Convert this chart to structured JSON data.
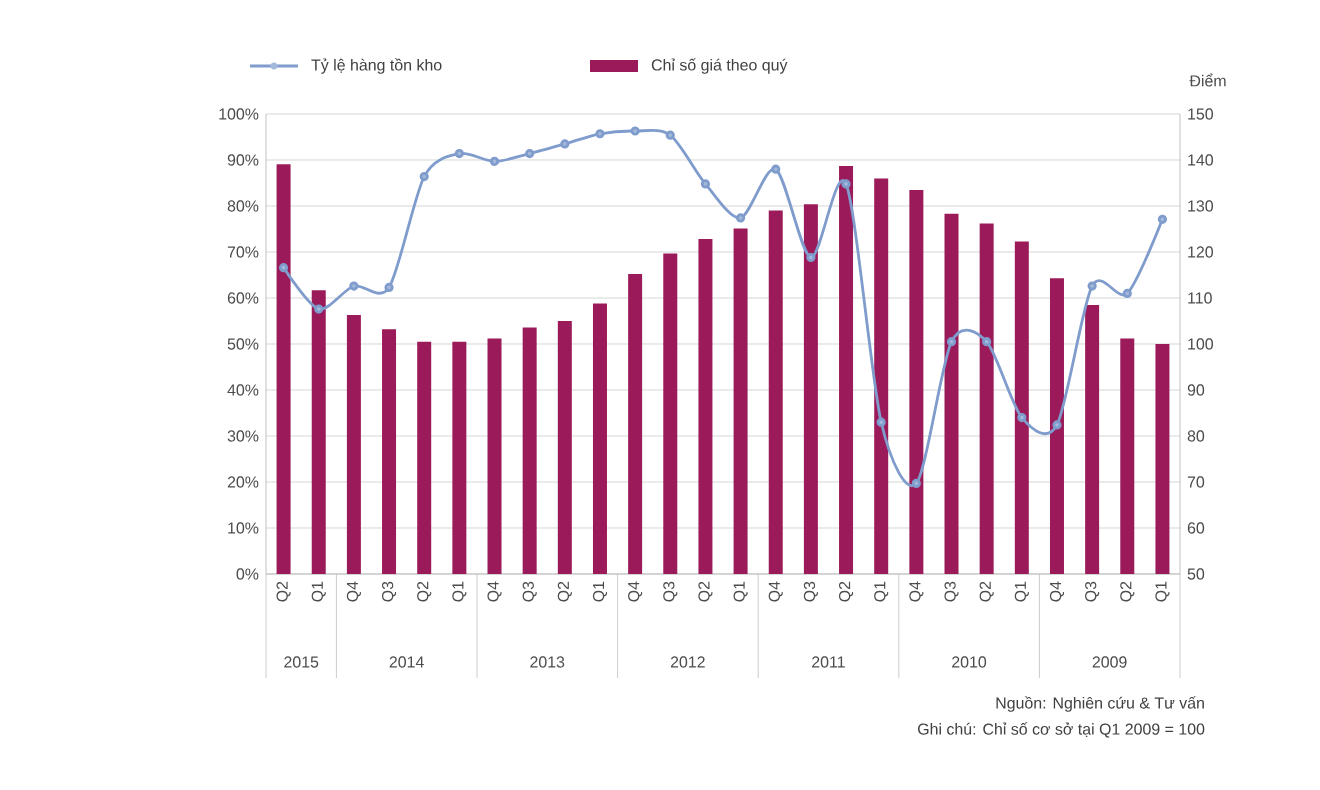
{
  "chart_data": {
    "type": "bar",
    "categories": [
      "Q2",
      "Q1",
      "Q4",
      "Q3",
      "Q2",
      "Q1",
      "Q4",
      "Q3",
      "Q2",
      "Q1",
      "Q4",
      "Q3",
      "Q2",
      "Q1",
      "Q4",
      "Q3",
      "Q2",
      "Q1",
      "Q4",
      "Q3",
      "Q2",
      "Q1",
      "Q4",
      "Q3",
      "Q2",
      "Q1"
    ],
    "series": [
      {
        "name": "Tỷ lệ hàng tồn kho",
        "type": "line",
        "color": "#7f9ccc",
        "values": [
          66.6,
          57.6,
          62.6,
          62.3,
          86.4,
          91.4,
          89.7,
          91.4,
          93.5,
          95.7,
          96.3,
          95.4,
          84.8,
          77.4,
          88,
          68.8,
          84.8,
          33,
          19.7,
          50.5,
          50.5,
          34,
          32.4,
          62.6,
          61,
          77.1
        ]
      },
      {
        "name": "Chỉ số giá theo quý",
        "axis": "y2",
        "color": "#9b1b5a",
        "values": [
          139.1,
          111.7,
          106.3,
          103.2,
          100.5,
          100.5,
          101.2,
          103.6,
          105,
          108.8,
          115.2,
          119.7,
          122.8,
          125.1,
          129,
          130.4,
          138.7,
          136,
          133.5,
          128.3,
          126.2,
          122.3,
          114.3,
          108.5,
          101.2,
          100
        ]
      }
    ],
    "ylim": [
      0,
      100
    ],
    "yticks": [
      {
        "value": 0,
        "label": "0%"
      },
      {
        "value": 10,
        "label": "10%"
      },
      {
        "value": 20,
        "label": "20%"
      },
      {
        "value": 30,
        "label": "30%"
      },
      {
        "value": 40,
        "label": "40%"
      },
      {
        "value": 50,
        "label": "50%"
      },
      {
        "value": 60,
        "label": "60%"
      },
      {
        "value": 70,
        "label": "70%"
      },
      {
        "value": 80,
        "label": "80%"
      },
      {
        "value": 90,
        "label": "90%"
      },
      {
        "value": 100,
        "label": "100%"
      }
    ],
    "y2lim": [
      50,
      150
    ],
    "y2ticks": [
      50,
      60,
      70,
      80,
      90,
      100,
      110,
      120,
      130,
      140,
      150
    ],
    "y2label": "Điểm",
    "annotations": [
      "2015",
      "2014",
      "2013",
      "2012",
      "2011",
      "2010",
      "2009",
      "Nguồn: Nghiên cứu & Tư vấn",
      "Ghi chú: Chỉ số cơ sở tại Q1 2009 = 100"
    ],
    "grid": "y",
    "legend": "top",
    "marker": "circle"
  }
}
